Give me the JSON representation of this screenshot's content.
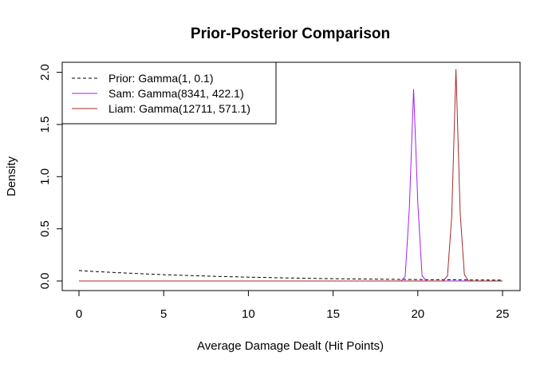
{
  "chart_data": {
    "type": "line",
    "title": "Prior-Posterior Comparison",
    "xlabel": "Average Damage Dealt (Hit Points)",
    "ylabel": "Density",
    "xlim": [
      0,
      25
    ],
    "ylim": [
      0,
      2.05
    ],
    "x_ticks": [
      0,
      5,
      10,
      15,
      20,
      25
    ],
    "y_ticks": [
      0.0,
      0.5,
      1.0,
      1.5,
      2.0
    ],
    "x_tick_labels": [
      "0",
      "5",
      "10",
      "15",
      "20",
      "25"
    ],
    "y_tick_labels": [
      "0.0",
      "0.5",
      "1.0",
      "1.5",
      "2.0"
    ],
    "grid": false,
    "legend_position": "top-left",
    "series": [
      {
        "name": "Prior: Gamma(1, 0.1)",
        "color": "#000000",
        "dash": "dashed",
        "x": [
          0,
          1,
          2,
          3,
          4,
          5,
          6,
          7,
          8,
          9,
          10,
          11,
          12,
          13,
          14,
          15,
          16,
          17,
          18,
          19,
          20,
          21,
          22,
          23,
          24,
          25
        ],
        "y": [
          0.1,
          0.0905,
          0.0819,
          0.0741,
          0.067,
          0.0607,
          0.0549,
          0.0497,
          0.0449,
          0.0407,
          0.0368,
          0.0333,
          0.0301,
          0.0273,
          0.0247,
          0.0223,
          0.0202,
          0.0183,
          0.0165,
          0.015,
          0.0135,
          0.0122,
          0.0111,
          0.01,
          0.0091,
          0.0082
        ]
      },
      {
        "name": "Sam: Gamma(8341, 422.1)",
        "color": "#a020f0",
        "dash": "solid",
        "x": [
          0,
          19.0,
          19.25,
          19.5,
          19.75,
          20.0,
          20.25,
          20.5,
          25
        ],
        "y": [
          0,
          0.0,
          0.04,
          0.7,
          1.84,
          0.75,
          0.05,
          0.0,
          0
        ]
      },
      {
        "name": "Liam: Gamma(12711, 571.1)",
        "color": "#a52a2a",
        "dash": "solid",
        "x": [
          0,
          21.5,
          21.75,
          22.0,
          22.25,
          22.5,
          22.75,
          23.0,
          25
        ],
        "y": [
          0,
          0.0,
          0.05,
          0.62,
          2.03,
          0.65,
          0.06,
          0.0,
          0
        ]
      }
    ]
  }
}
